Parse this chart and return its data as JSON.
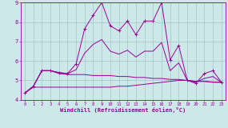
{
  "xlabel": "Windchill (Refroidissement éolien,°C)",
  "background_color": "#cce8e8",
  "grid_color": "#aacccc",
  "line_color": "#990099",
  "xlim": [
    -0.5,
    23.5
  ],
  "ylim": [
    4.0,
    9.0
  ],
  "yticks": [
    4,
    5,
    6,
    7,
    8,
    9
  ],
  "xticks": [
    0,
    1,
    2,
    3,
    4,
    5,
    6,
    7,
    8,
    9,
    10,
    11,
    12,
    13,
    14,
    15,
    16,
    17,
    18,
    19,
    20,
    21,
    22,
    23
  ],
  "series1_x": [
    0,
    1,
    2,
    3,
    4,
    5,
    6,
    7,
    8,
    9,
    10,
    11,
    12,
    13,
    14,
    15,
    16,
    17,
    18,
    19,
    20,
    21,
    22,
    23
  ],
  "series1_y": [
    4.35,
    4.7,
    5.5,
    5.5,
    5.4,
    5.35,
    5.85,
    7.65,
    8.35,
    9.0,
    7.8,
    7.55,
    8.05,
    7.35,
    8.05,
    8.05,
    9.0,
    6.05,
    6.8,
    5.0,
    4.85,
    5.35,
    5.5,
    4.9
  ],
  "series2_x": [
    0,
    1,
    2,
    3,
    4,
    5,
    6,
    7,
    8,
    9,
    10,
    11,
    12,
    13,
    14,
    15,
    16,
    17,
    18,
    19,
    20,
    21,
    22,
    23
  ],
  "series2_y": [
    4.35,
    4.65,
    4.65,
    4.65,
    4.65,
    4.65,
    4.65,
    4.65,
    4.65,
    4.65,
    4.65,
    4.7,
    4.7,
    4.75,
    4.8,
    4.85,
    4.9,
    4.95,
    5.0,
    5.0,
    4.95,
    4.95,
    4.9,
    4.9
  ],
  "series3_x": [
    0,
    1,
    2,
    3,
    4,
    5,
    6,
    7,
    8,
    9,
    10,
    11,
    12,
    13,
    14,
    15,
    16,
    17,
    18,
    19,
    20,
    21,
    22,
    23
  ],
  "series3_y": [
    4.35,
    4.7,
    5.5,
    5.5,
    5.35,
    5.3,
    5.3,
    5.3,
    5.25,
    5.25,
    5.25,
    5.2,
    5.2,
    5.15,
    5.15,
    5.1,
    5.1,
    5.05,
    5.05,
    5.0,
    4.95,
    4.95,
    4.92,
    4.9
  ],
  "series4_x": [
    0,
    1,
    2,
    3,
    4,
    5,
    6,
    7,
    8,
    9,
    10,
    11,
    12,
    13,
    14,
    15,
    16,
    17,
    18,
    19,
    20,
    21,
    22,
    23
  ],
  "series4_y": [
    4.35,
    4.7,
    5.5,
    5.5,
    5.4,
    5.35,
    5.55,
    6.4,
    6.85,
    7.1,
    6.5,
    6.35,
    6.55,
    6.2,
    6.5,
    6.5,
    6.95,
    5.5,
    5.9,
    5.0,
    4.9,
    5.1,
    5.2,
    4.9
  ]
}
